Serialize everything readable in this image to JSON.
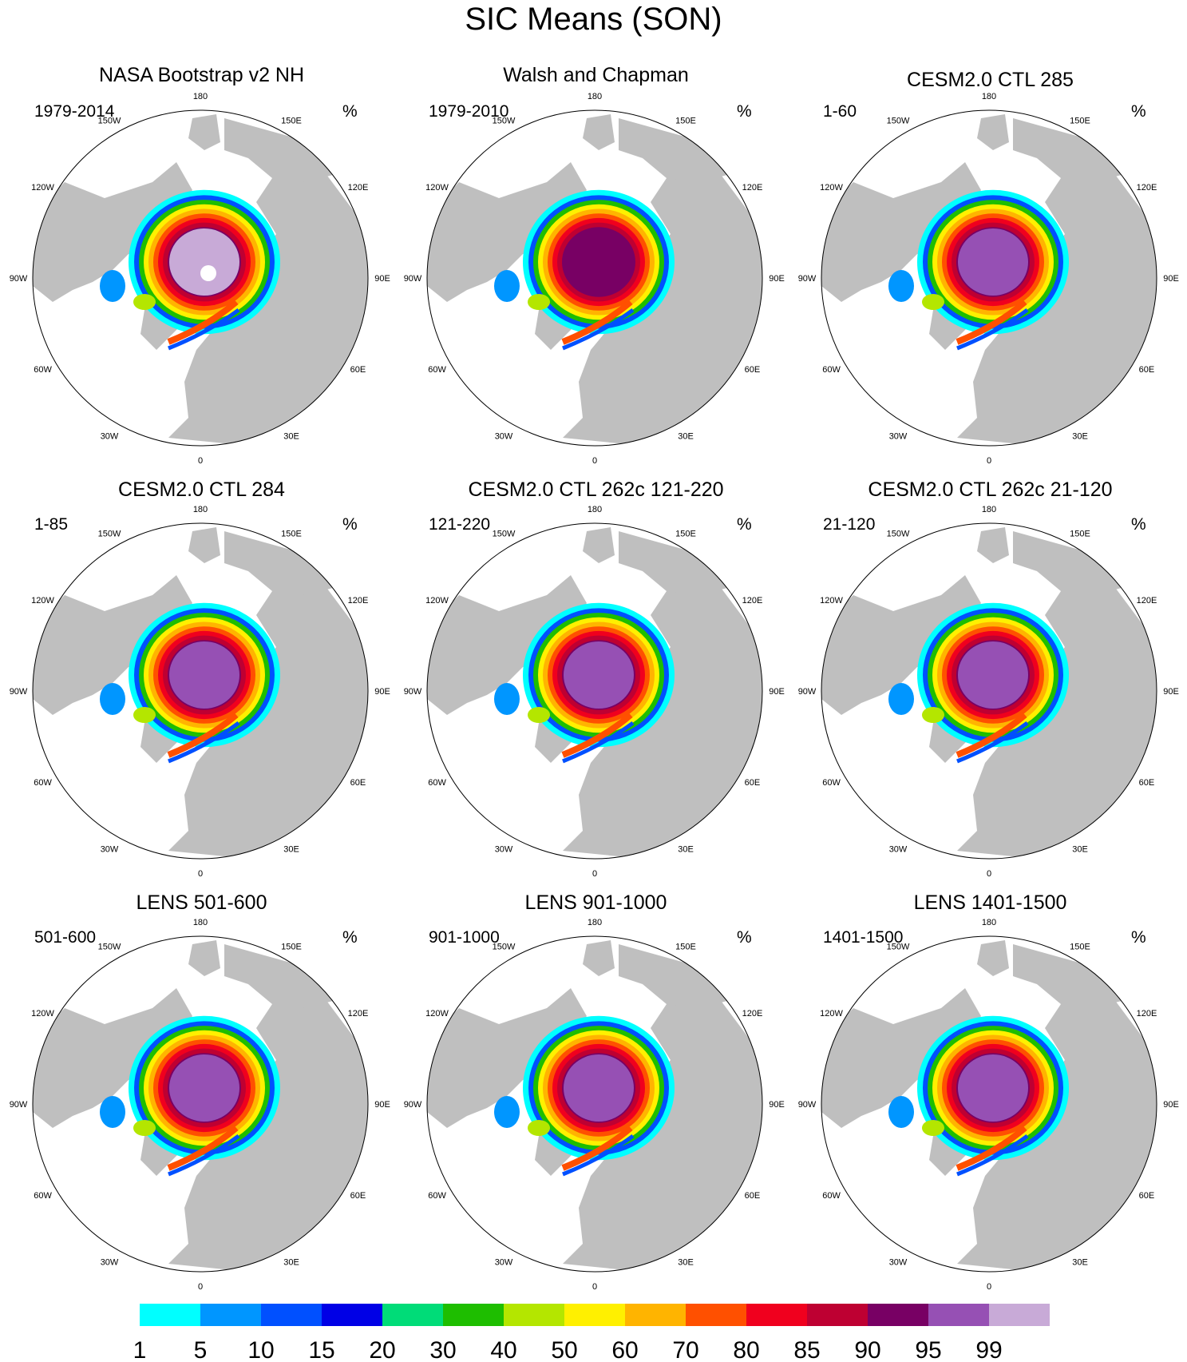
{
  "title": "SIC Means (SON)",
  "unit": "%",
  "lon_labels": [
    "180",
    "150E",
    "120E",
    "90E",
    "60E",
    "30E",
    "0",
    "30W",
    "60W",
    "90W",
    "120W",
    "150W"
  ],
  "colors": {
    "land": "#bfbfbf",
    "ocean": "#ffffff",
    "scale": [
      "#00ffff",
      "#0096ff",
      "#0050ff",
      "#0000e6",
      "#00dc78",
      "#1ebe00",
      "#b4e600",
      "#fff000",
      "#ffb400",
      "#ff5000",
      "#f0001e",
      "#be0032",
      "#780064",
      "#9650b4",
      "#c8aad7"
    ]
  },
  "panels": [
    {
      "title": "NASA Bootstrap v2 NH",
      "range": "1979-2014"
    },
    {
      "title": "Walsh and Chapman",
      "range": "1979-2010"
    },
    {
      "title": "CESM2.0 CTL 285",
      "range": "1-60"
    },
    {
      "title": "CESM2.0 CTL 284",
      "range": "1-85"
    },
    {
      "title": "CESM2.0 CTL 262c 121-220",
      "range": "121-220"
    },
    {
      "title": "CESM2.0 CTL 262c 21-120",
      "range": "21-120"
    },
    {
      "title": "LENS 501-600",
      "range": "501-600"
    },
    {
      "title": "LENS 901-1000",
      "range": "901-1000"
    },
    {
      "title": "LENS 1401-1500",
      "range": "1401-1500"
    }
  ],
  "colorbar": {
    "labels": [
      "1",
      "5",
      "10",
      "15",
      "20",
      "30",
      "40",
      "50",
      "60",
      "70",
      "80",
      "85",
      "90",
      "95",
      "99"
    ]
  }
}
